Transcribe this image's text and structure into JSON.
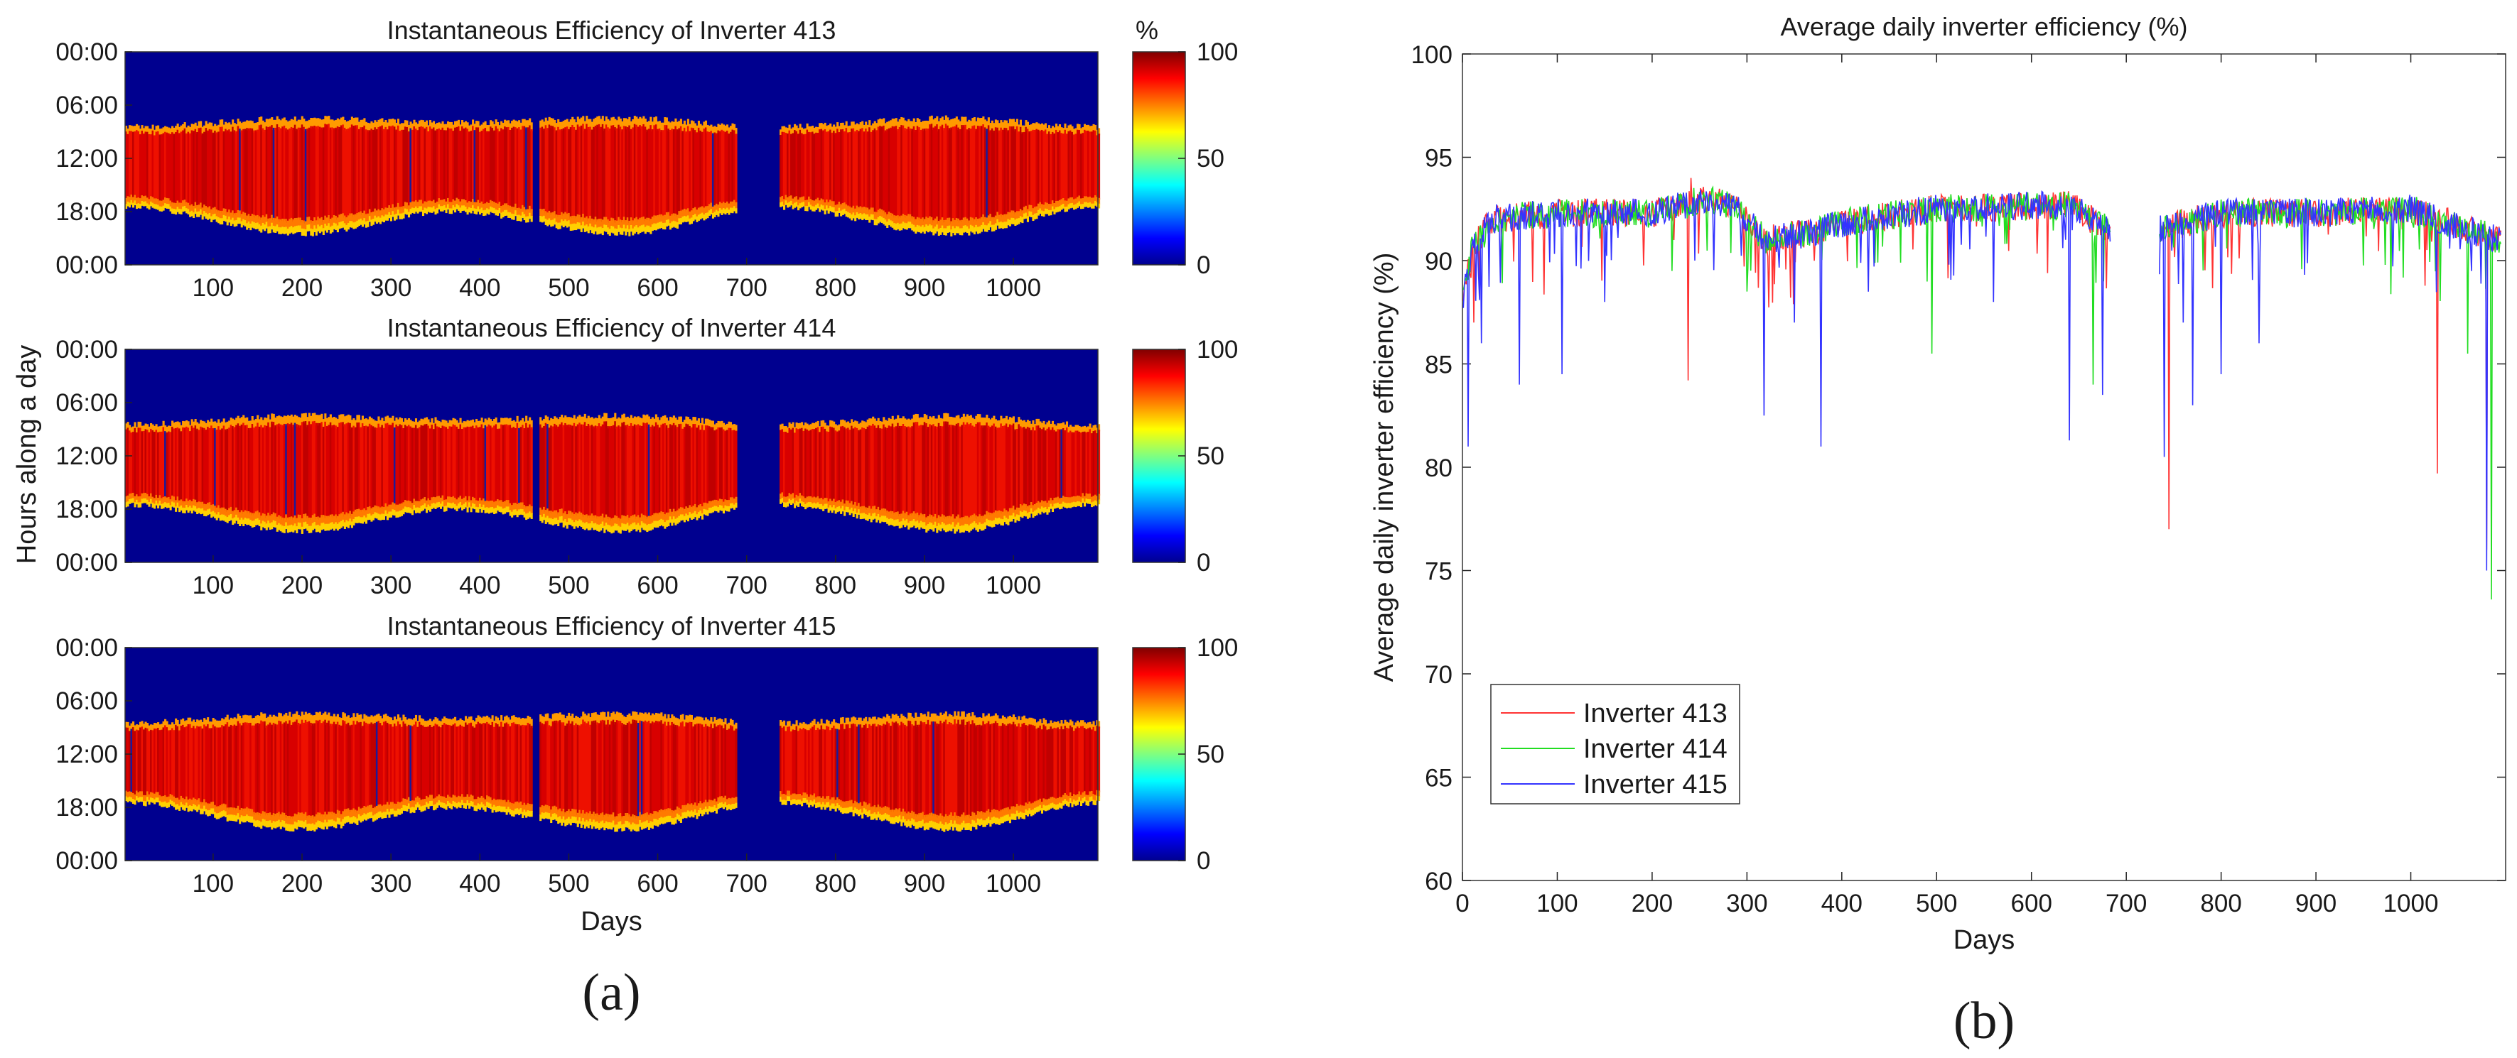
{
  "chart_data": [
    {
      "type": "heatmap",
      "panel_label": "(a)",
      "colorbar": {
        "unit": "%",
        "ticks": [
          "0",
          "50",
          "100"
        ],
        "range": [
          0,
          100
        ],
        "colormap": "jet"
      },
      "xlabel": "Days",
      "ylabel": "Hours along a day",
      "x_ticks": [
        "100",
        "200",
        "300",
        "400",
        "500",
        "600",
        "700",
        "800",
        "900",
        "1000"
      ],
      "x_range": [
        1,
        1095
      ],
      "y_ticks": [
        "00:00",
        "06:00",
        "12:00",
        "18:00",
        "00:00"
      ],
      "data_gaps_days": [
        [
          458,
          466
        ],
        [
          688,
          735
        ]
      ],
      "active_hours_by_day": [
        {
          "day": 1,
          "start": "08:30",
          "end": "17:30"
        },
        {
          "day": 200,
          "start": "07:30",
          "end": "20:30"
        },
        {
          "day": 365,
          "start": "08:00",
          "end": "18:00"
        },
        {
          "day": 560,
          "start": "07:30",
          "end": "20:30"
        },
        {
          "day": 730,
          "start": "08:30",
          "end": "17:30"
        },
        {
          "day": 930,
          "start": "07:30",
          "end": "20:30"
        },
        {
          "day": 1095,
          "start": "08:30",
          "end": "17:30"
        }
      ],
      "panels": [
        {
          "title": "Instantaneous Efficiency of Inverter 413"
        },
        {
          "title": "Instantaneous Efficiency of Inverter 414"
        },
        {
          "title": "Instantaneous Efficiency of Inverter 415"
        }
      ]
    },
    {
      "type": "line",
      "panel_label": "(b)",
      "title": "Average daily inverter efficiency (%)",
      "xlabel": "Days",
      "ylabel": "Average daily inverter efficiency (%)",
      "xlim": [
        0,
        1100
      ],
      "ylim": [
        60,
        100
      ],
      "x_ticks": [
        0,
        100,
        200,
        300,
        400,
        500,
        600,
        700,
        800,
        900,
        1000
      ],
      "y_ticks": [
        60,
        65,
        70,
        75,
        80,
        85,
        90,
        95,
        100
      ],
      "baseline_profile": [
        [
          0,
          88
        ],
        [
          10,
          90.5
        ],
        [
          30,
          92
        ],
        [
          100,
          92.3
        ],
        [
          200,
          92.3
        ],
        [
          260,
          93
        ],
        [
          290,
          92.5
        ],
        [
          320,
          91
        ],
        [
          360,
          91.3
        ],
        [
          420,
          92
        ],
        [
          500,
          92.5
        ],
        [
          640,
          92.7
        ],
        [
          680,
          91.5
        ],
        [
          735,
          91.5
        ],
        [
          800,
          92.3
        ],
        [
          900,
          92.3
        ],
        [
          1000,
          92.5
        ],
        [
          1060,
          91.5
        ],
        [
          1095,
          91
        ]
      ],
      "gap_days": [
        683,
        735
      ],
      "legend_position": "bottom-left",
      "series": [
        {
          "name": "Inverter 413",
          "color": "#ff3333",
          "dips": [
            [
              238,
              84.2
            ],
            [
              241,
              94
            ],
            [
              745,
              77
            ],
            [
              1028,
              79.7
            ],
            [
              1080,
              76
            ],
            [
              12,
              87
            ]
          ]
        },
        {
          "name": "Inverter 414",
          "color": "#22dd22",
          "dips": [
            [
              495,
              85.5
            ],
            [
              1060,
              85.5
            ],
            [
              1085,
              73.6
            ],
            [
              665,
              84
            ],
            [
              300,
              88.5
            ]
          ]
        },
        {
          "name": "Inverter 415",
          "color": "#3333ff",
          "dips": [
            [
              6,
              81
            ],
            [
              60,
              84
            ],
            [
              105,
              84.5
            ],
            [
              318,
              82.5
            ],
            [
              378,
              81
            ],
            [
              640,
              81.3
            ],
            [
              675,
              83.5
            ],
            [
              740,
              80.5
            ],
            [
              770,
              83
            ],
            [
              800,
              84.5
            ],
            [
              840,
              86
            ],
            [
              1080,
              75
            ],
            [
              20,
              86
            ],
            [
              150,
              88
            ],
            [
              245,
              90
            ],
            [
              350,
              87
            ],
            [
              560,
              88
            ],
            [
              760,
              87
            ]
          ]
        }
      ]
    }
  ]
}
